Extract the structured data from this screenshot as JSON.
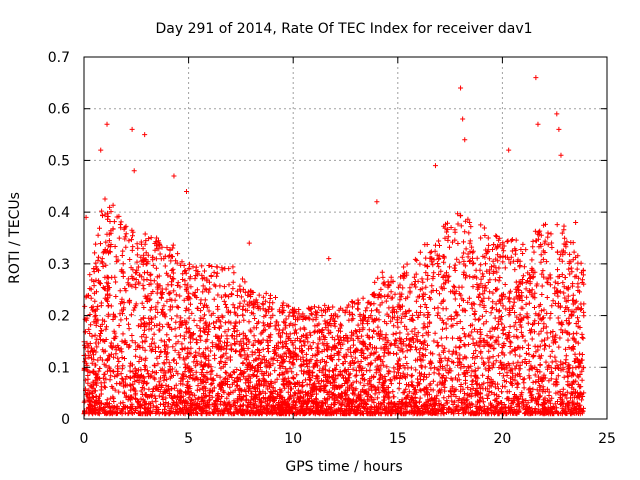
{
  "chart_data": {
    "type": "scatter",
    "title": "Day 291 of 2014, Rate Of TEC Index for receiver dav1",
    "xlabel": "GPS time / hours",
    "ylabel": "ROTI / TECUs",
    "xlim": [
      0,
      25
    ],
    "ylim": [
      0,
      0.7
    ],
    "xticks": [
      "0",
      "5",
      "10",
      "15",
      "20",
      "25"
    ],
    "yticks": [
      "0",
      "0.1",
      "0.2",
      "0.3",
      "0.4",
      "0.5",
      "0.6",
      "0.7"
    ],
    "grid": true,
    "marker": "+",
    "color": "#ff0000",
    "series": [
      {
        "name": "dav1",
        "x_range": [
          0,
          23.9
        ],
        "approx_points": 9000,
        "envelope_hours": [
          0,
          1,
          2,
          3,
          4,
          5,
          6,
          7,
          8,
          9,
          10,
          11,
          12,
          13,
          14,
          15,
          16,
          17,
          18,
          19,
          20,
          21,
          22,
          23,
          24
        ],
        "envelope_upper_rotis": [
          0.22,
          0.45,
          0.38,
          0.36,
          0.35,
          0.3,
          0.3,
          0.3,
          0.25,
          0.24,
          0.22,
          0.22,
          0.22,
          0.23,
          0.28,
          0.3,
          0.32,
          0.38,
          0.4,
          0.38,
          0.35,
          0.35,
          0.38,
          0.38,
          0.28
        ],
        "outliers": [
          {
            "x": 0.1,
            "y": 0.39
          },
          {
            "x": 1.1,
            "y": 0.57
          },
          {
            "x": 0.8,
            "y": 0.52
          },
          {
            "x": 2.3,
            "y": 0.56
          },
          {
            "x": 2.9,
            "y": 0.55
          },
          {
            "x": 2.4,
            "y": 0.48
          },
          {
            "x": 4.3,
            "y": 0.47
          },
          {
            "x": 4.9,
            "y": 0.44
          },
          {
            "x": 7.9,
            "y": 0.34
          },
          {
            "x": 11.7,
            "y": 0.31
          },
          {
            "x": 14.0,
            "y": 0.42
          },
          {
            "x": 16.8,
            "y": 0.49
          },
          {
            "x": 18.0,
            "y": 0.64
          },
          {
            "x": 18.1,
            "y": 0.58
          },
          {
            "x": 18.2,
            "y": 0.54
          },
          {
            "x": 20.3,
            "y": 0.52
          },
          {
            "x": 21.6,
            "y": 0.66
          },
          {
            "x": 21.7,
            "y": 0.57
          },
          {
            "x": 22.6,
            "y": 0.59
          },
          {
            "x": 22.7,
            "y": 0.56
          },
          {
            "x": 22.8,
            "y": 0.51
          },
          {
            "x": 23.5,
            "y": 0.38
          }
        ]
      }
    ]
  }
}
